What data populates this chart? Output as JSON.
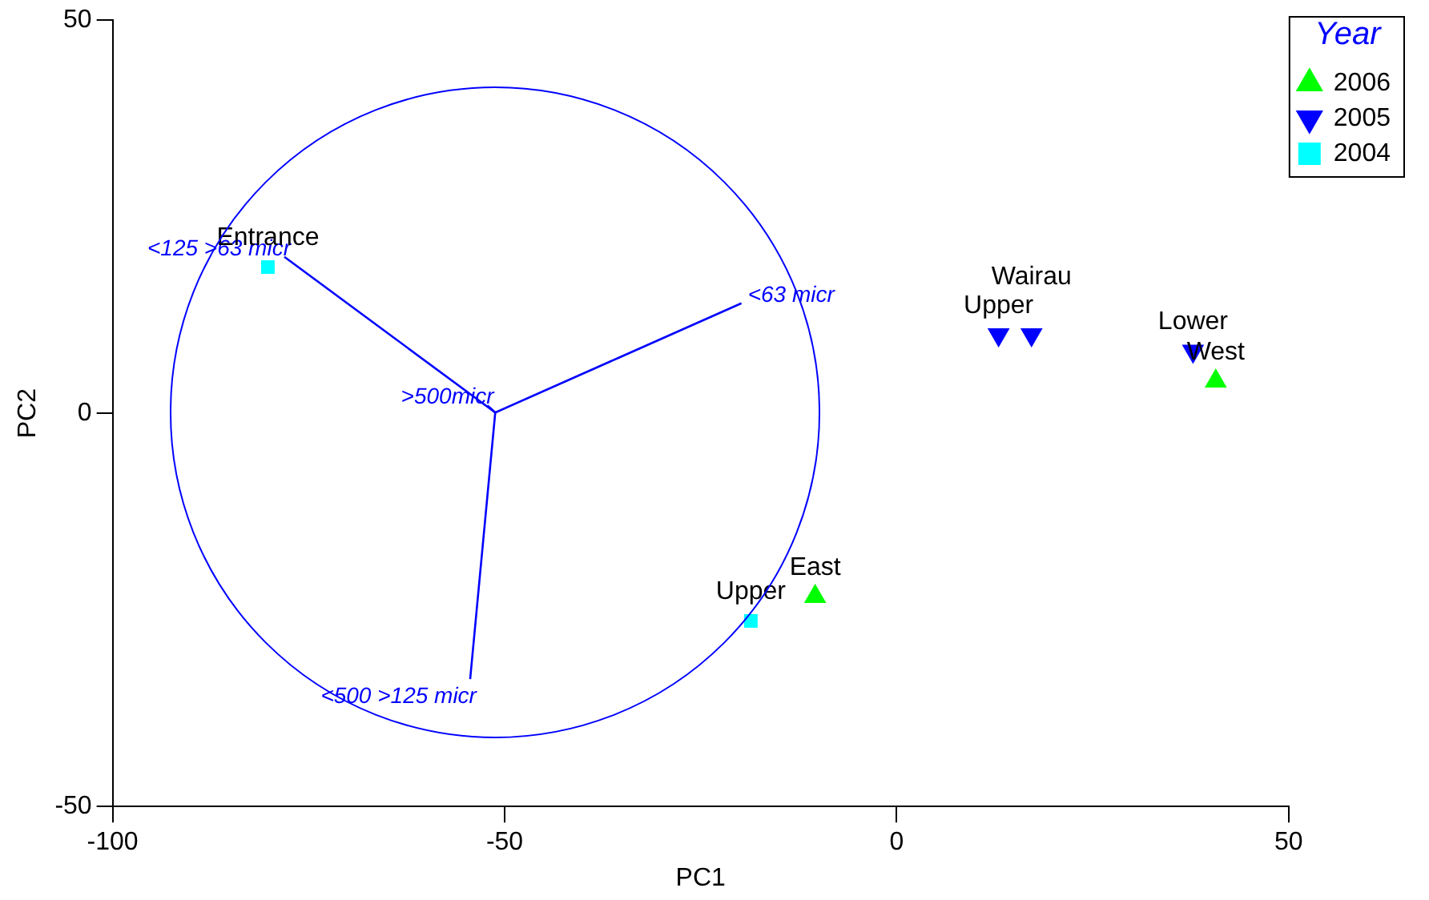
{
  "chart_data": {
    "type": "scatter",
    "xlabel": "PC1",
    "ylabel": "PC2",
    "legend_title": "Year",
    "legend": "top right",
    "grid": false,
    "xlim": [
      -100,
      50
    ],
    "xticks": [
      -100,
      -50,
      0,
      50
    ],
    "ylim": [
      -50,
      50
    ],
    "yticks": [
      -50,
      0,
      50
    ],
    "series": [
      {
        "name": "2006",
        "color": "#00ff00",
        "marker": "triangle",
        "x": [
          -10.4,
          40.7
        ],
        "values": [
          -23.3,
          4.1
        ]
      },
      {
        "name": "2005",
        "color": "#0000ff",
        "marker": "triangle-down",
        "x": [
          13.0,
          17.2,
          37.8
        ],
        "values": [
          10.0,
          10.0,
          7.9
        ]
      },
      {
        "name": "2004",
        "color": "#00ffff",
        "marker": "square",
        "x": [
          -80.2,
          -18.6
        ],
        "values": [
          18.6,
          -26.4
        ]
      },
      {
        "type": "line",
        "name": "<125 >63 micr",
        "color": "#0000ff",
        "x": [
          -51.2,
          -78.1
        ],
        "values": [
          0.1,
          19.9
        ]
      },
      {
        "type": "line",
        "name": "<63 micr",
        "color": "#0000ff",
        "x": [
          -51.2,
          -19.8
        ],
        "values": [
          0.1,
          14.0
        ]
      },
      {
        "type": "line",
        "name": ">500micr",
        "color": "#0000ff",
        "x": [
          -51.2,
          -52.2
        ],
        "values": [
          0.1,
          1.0
        ]
      },
      {
        "type": "line",
        "name": "<500 >125 micr",
        "color": "#0000ff",
        "x": [
          -51.2,
          -54.4
        ],
        "values": [
          0.1,
          -33.8
        ]
      }
    ],
    "annotations": [
      {
        "text": "Entrance",
        "x": -80.2,
        "y": 18.6
      },
      {
        "text": "Upper",
        "x": -18.6,
        "y": -26.4
      },
      {
        "text": "East",
        "x": -10.4,
        "y": -23.3
      },
      {
        "text": "Upper",
        "x": 13.0,
        "y": 10.0
      },
      {
        "text": "Wairau",
        "x": 17.2,
        "y": 10.0
      },
      {
        "text": "Lower",
        "x": 37.8,
        "y": 7.9
      },
      {
        "text": "West",
        "x": 40.7,
        "y": 4.1
      }
    ]
  }
}
